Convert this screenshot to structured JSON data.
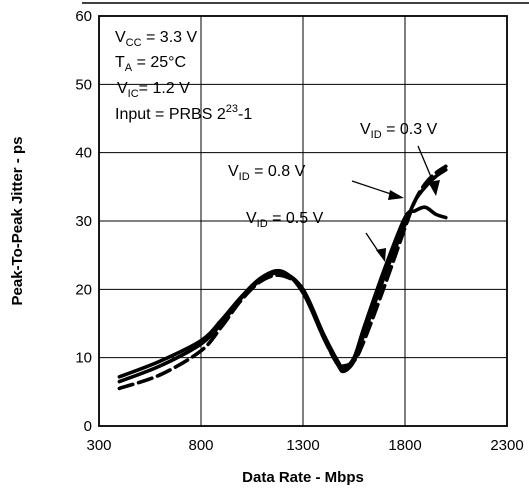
{
  "chart_data": {
    "type": "line",
    "xlabel": "Data Rate - Mbps",
    "ylabel": "Peak-To-Peak Jitter - ps",
    "xlim": [
      300,
      2300
    ],
    "ylim": [
      0,
      60
    ],
    "x_ticks": [
      300,
      800,
      1300,
      1800,
      2300
    ],
    "y_ticks": [
      0,
      10,
      20,
      30,
      40,
      50,
      60
    ],
    "x_tick_labels": [
      "300",
      "800",
      "1300",
      "1800",
      "2300"
    ],
    "y_tick_labels": [
      "0",
      "10",
      "20",
      "30",
      "40",
      "50",
      "60"
    ],
    "grid": true,
    "conditions": {
      "vcc": {
        "main": "V",
        "sub": "CC",
        "tail": " = 3.3 V"
      },
      "ta": {
        "main": "T",
        "sub": "A",
        "tail": " = 25°C"
      },
      "vic": {
        "main": "V",
        "sub": "IC",
        "tail": "= 1.2 V"
      },
      "input": {
        "main": "Input = PRBS  2",
        "sup": "23",
        "tail": "-1"
      }
    },
    "series_labels": [
      {
        "main": "V",
        "sub": "ID",
        "tail": " = 0.3 V"
      },
      {
        "main": "V",
        "sub": "ID",
        "tail": " = 0.8 V"
      },
      {
        "main": "V",
        "sub": "ID",
        "tail": " = 0.5 V"
      }
    ],
    "series": [
      {
        "style": "solid",
        "points": [
          [
            400,
            7.2
          ],
          [
            600,
            9.5
          ],
          [
            800,
            12.5
          ],
          [
            900,
            15.5
          ],
          [
            1000,
            19.0
          ],
          [
            1100,
            21.8
          ],
          [
            1200,
            22.6
          ],
          [
            1300,
            19.5
          ],
          [
            1400,
            13.0
          ],
          [
            1470,
            9.0
          ],
          [
            1500,
            8.0
          ],
          [
            1550,
            9.5
          ],
          [
            1600,
            13.5
          ],
          [
            1700,
            22.0
          ],
          [
            1800,
            29.5
          ],
          [
            1850,
            33.0
          ],
          [
            1900,
            35.0
          ],
          [
            1950,
            36.5
          ],
          [
            2000,
            37.5
          ]
        ]
      },
      {
        "style": "solid",
        "points": [
          [
            400,
            6.5
          ],
          [
            600,
            8.8
          ],
          [
            800,
            12.0
          ],
          [
            900,
            15.0
          ],
          [
            1000,
            18.8
          ],
          [
            1100,
            21.5
          ],
          [
            1200,
            22.4
          ],
          [
            1300,
            20.0
          ],
          [
            1400,
            13.5
          ],
          [
            1470,
            9.5
          ],
          [
            1500,
            8.5
          ],
          [
            1550,
            10.0
          ],
          [
            1600,
            14.5
          ],
          [
            1700,
            23.0
          ],
          [
            1800,
            30.5
          ],
          [
            1850,
            31.5
          ],
          [
            1900,
            32.0
          ],
          [
            1950,
            31.0
          ],
          [
            2000,
            30.5
          ]
        ]
      },
      {
        "style": "dashed",
        "points": [
          [
            400,
            5.5
          ],
          [
            600,
            7.5
          ],
          [
            800,
            11.0
          ],
          [
            900,
            14.5
          ],
          [
            1000,
            18.5
          ],
          [
            1100,
            21.3
          ],
          [
            1200,
            22.0
          ],
          [
            1300,
            19.8
          ],
          [
            1400,
            13.0
          ],
          [
            1470,
            9.0
          ],
          [
            1500,
            8.8
          ],
          [
            1550,
            9.5
          ],
          [
            1600,
            12.5
          ],
          [
            1700,
            20.5
          ],
          [
            1800,
            29.0
          ],
          [
            1850,
            33.0
          ],
          [
            1900,
            35.5
          ],
          [
            1950,
            37.0
          ],
          [
            2000,
            38.0
          ]
        ]
      }
    ]
  }
}
